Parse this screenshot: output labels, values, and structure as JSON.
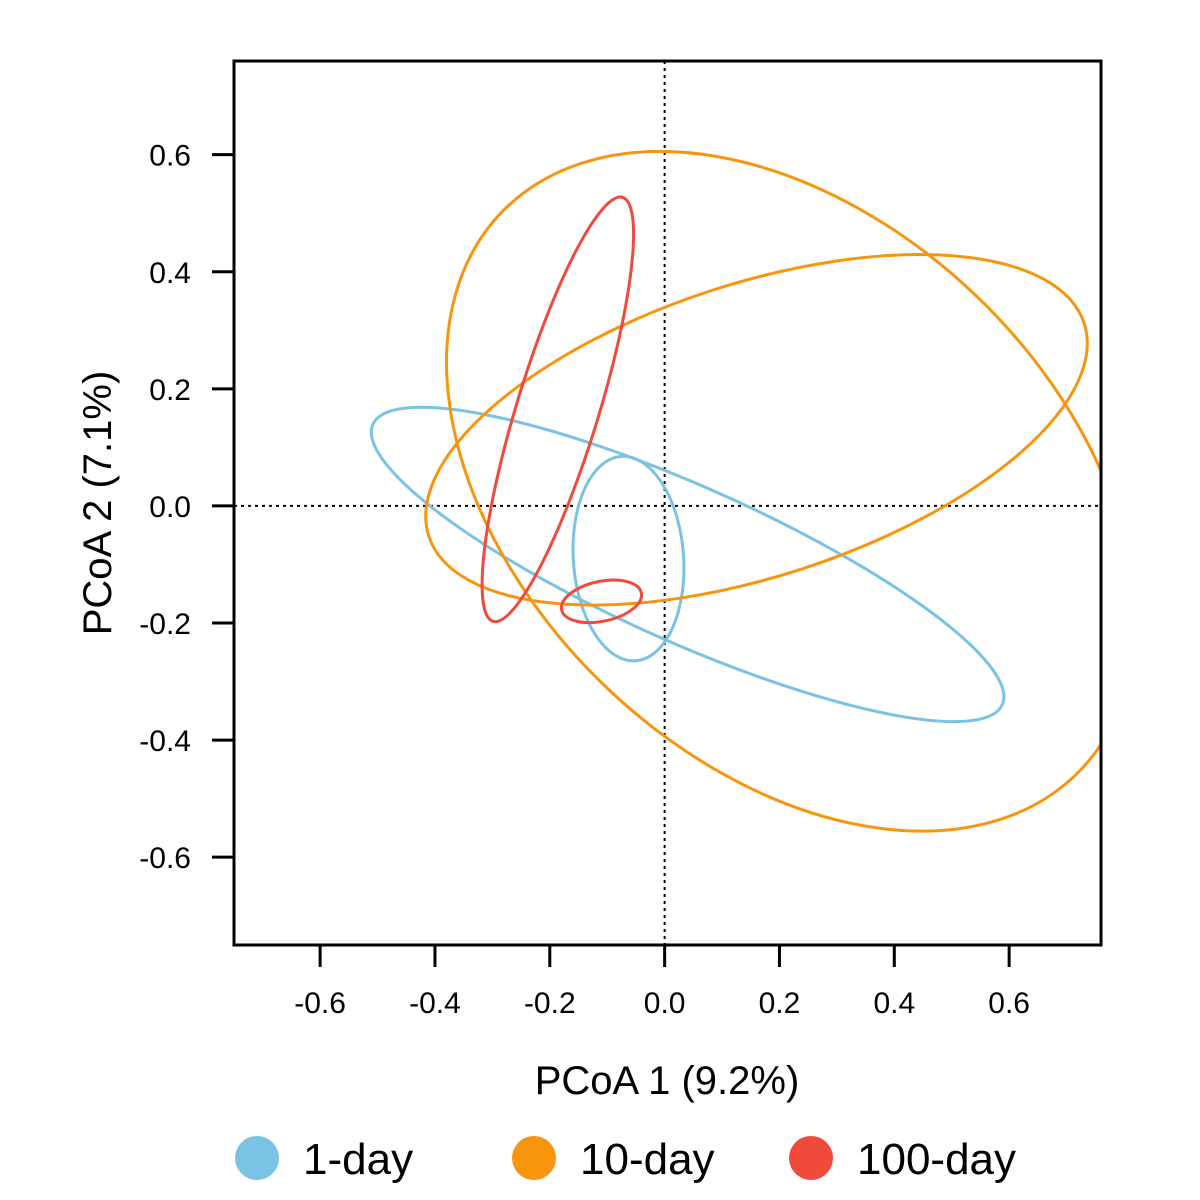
{
  "chart_data": {
    "type": "scatter",
    "title": "",
    "xlabel": "PCoA 1 (9.2%)",
    "ylabel": "PCoA 2 (7.1%)",
    "xlim": [
      -0.75,
      0.76
    ],
    "ylim": [
      -0.75,
      0.76
    ],
    "xticks": [
      "-0.6",
      "-0.4",
      "-0.2",
      "0.0",
      "0.2",
      "0.4",
      "0.6"
    ],
    "yticks": [
      "-0.6",
      "-0.4",
      "-0.2",
      "0.0",
      "0.2",
      "0.4",
      "0.6"
    ],
    "xtick_values": [
      -0.6,
      -0.4,
      -0.2,
      0.0,
      0.2,
      0.4,
      0.6
    ],
    "ytick_values": [
      -0.6,
      -0.4,
      -0.2,
      0.0,
      0.2,
      0.4,
      0.6
    ],
    "reference_lines": {
      "x": 0,
      "y": 0,
      "style": "dotted"
    },
    "grid": false,
    "legend_position": "bottom",
    "series": [
      {
        "name": "1-day",
        "color": "#7ac3e3",
        "ellipses": [
          {
            "cx": 0.04,
            "cy": -0.1,
            "rx": 0.6,
            "ry": 0.133,
            "angle_deg": -24
          },
          {
            "cx": -0.063,
            "cy": -0.09,
            "rx": 0.096,
            "ry": 0.175,
            "angle_deg": 4
          }
        ]
      },
      {
        "name": "10-day",
        "color": "#f7950f",
        "ellipses": [
          {
            "cx": 0.16,
            "cy": 0.13,
            "rx": 0.6,
            "ry": 0.25,
            "angle_deg": 18
          },
          {
            "cx": 0.22,
            "cy": 0.025,
            "rx": 0.7,
            "ry": 0.46,
            "angle_deg": -44
          }
        ]
      },
      {
        "name": "100-day",
        "color": "#f04a3d",
        "ellipses": [
          {
            "cx": -0.186,
            "cy": 0.165,
            "rx": 0.386,
            "ry": 0.07,
            "angle_deg": 73
          },
          {
            "cx": -0.11,
            "cy": -0.163,
            "rx": 0.071,
            "ry": 0.034,
            "angle_deg": 12
          }
        ]
      }
    ]
  }
}
